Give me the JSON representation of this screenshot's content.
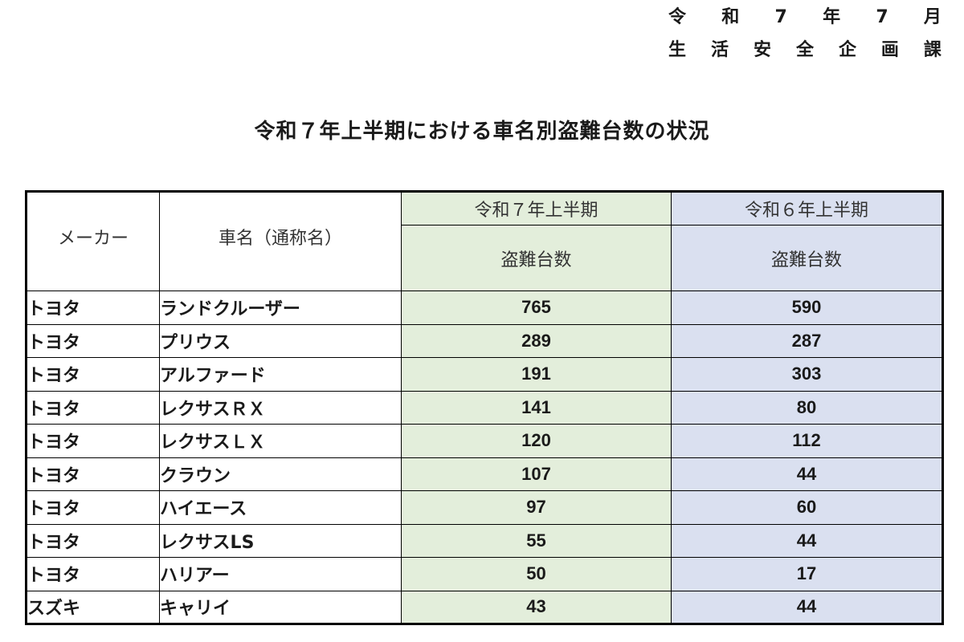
{
  "header": {
    "date_chars": [
      "令",
      "和",
      "7",
      "年",
      "7",
      "月"
    ],
    "dept_chars": [
      "生",
      "活",
      "安",
      "全",
      "企",
      "画",
      "課"
    ]
  },
  "title": "令和７年上半期における車名別盗難台数の状況",
  "table": {
    "col_maker": "メーカー",
    "col_name": "車名（通称名）",
    "col_r7_period": "令和７年上半期",
    "col_r6_period": "令和６年上半期",
    "col_r7_metric": "盗難台数",
    "col_r6_metric": "盗難台数",
    "rows": [
      {
        "maker": "トヨタ",
        "name": "ランドクルーザー",
        "r7": "765",
        "r6": "590"
      },
      {
        "maker": "トヨタ",
        "name": "プリウス",
        "r7": "289",
        "r6": "287"
      },
      {
        "maker": "トヨタ",
        "name": "アルファード",
        "r7": "191",
        "r6": "303"
      },
      {
        "maker": "トヨタ",
        "name": "レクサスＲＸ",
        "r7": "141",
        "r6": "80"
      },
      {
        "maker": "トヨタ",
        "name": "レクサスＬＸ",
        "r7": "120",
        "r6": "112"
      },
      {
        "maker": "トヨタ",
        "name": "クラウン",
        "r7": "107",
        "r6": "44"
      },
      {
        "maker": "トヨタ",
        "name": "ハイエース",
        "r7": "97",
        "r6": "60"
      },
      {
        "maker": "トヨタ",
        "name": "レクサスLS",
        "r7": "55",
        "r6": "44"
      },
      {
        "maker": "トヨタ",
        "name": "ハリアー",
        "r7": "50",
        "r6": "17"
      },
      {
        "maker": "スズキ",
        "name": "キャリイ",
        "r7": "43",
        "r6": "44"
      }
    ]
  },
  "colors": {
    "r7_fill": "#e3eedb",
    "r6_fill": "#dae0f0"
  }
}
